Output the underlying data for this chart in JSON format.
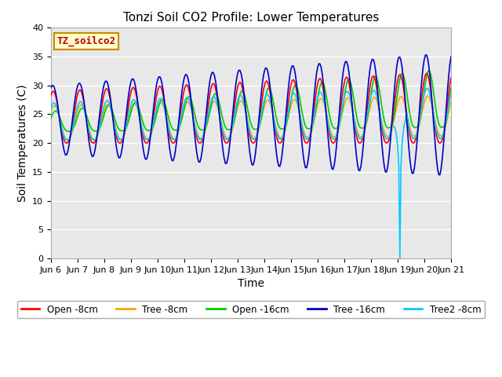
{
  "title": "Tonzi Soil CO2 Profile: Lower Temperatures",
  "xlabel": "Time",
  "ylabel": "Soil Temperatures (C)",
  "xlim": [
    0,
    15
  ],
  "ylim": [
    0,
    40
  ],
  "yticks": [
    0,
    5,
    10,
    15,
    20,
    25,
    30,
    35,
    40
  ],
  "xtick_labels": [
    "Jun 6",
    "Jun 7",
    "Jun 8",
    "Jun 9",
    "Jun 10",
    "Jun 11",
    "Jun 12",
    "Jun 13",
    "Jun 14",
    "Jun 15",
    "Jun 16",
    "Jun 17",
    "Jun 18",
    "Jun 19",
    "Jun 20",
    "Jun 21"
  ],
  "series": {
    "open_8cm": {
      "color": "#ff0000",
      "label": "Open -8cm",
      "lw": 1.2
    },
    "tree_8cm": {
      "color": "#ffa500",
      "label": "Tree -8cm",
      "lw": 1.2
    },
    "open_16cm": {
      "color": "#00cc00",
      "label": "Open -16cm",
      "lw": 1.2
    },
    "tree_16cm": {
      "color": "#0000cc",
      "label": "Tree -16cm",
      "lw": 1.2
    },
    "tree2_8cm": {
      "color": "#00ccff",
      "label": "Tree2 -8cm",
      "lw": 1.2
    }
  },
  "legend_label": "TZ_soilco2",
  "legend_box_color": "#ffffcc",
  "legend_box_edge": "#cc8800",
  "bg_color": "#e8e8e8",
  "grid_color": "#ffffff",
  "figsize": [
    6.4,
    4.8
  ],
  "dpi": 100
}
